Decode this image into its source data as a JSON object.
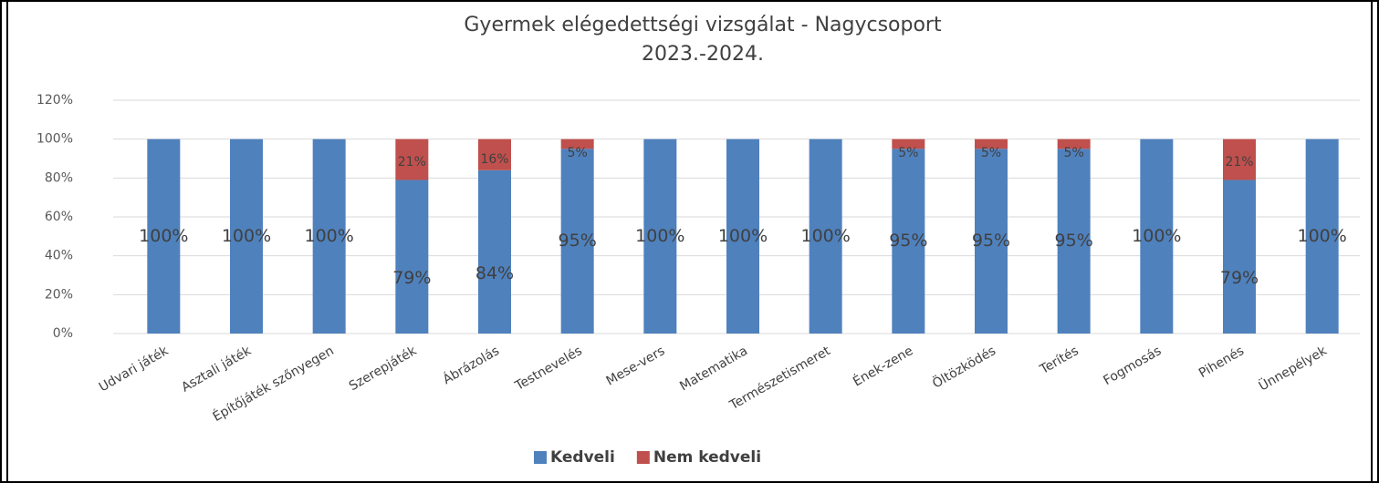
{
  "chart_data": {
    "type": "bar",
    "stacked": true,
    "title": "Gyermek elégedettségi vizsgálat - Nagycsoport",
    "subtitle": "2023.-2024.",
    "categories": [
      "Udvari játék",
      "Asztali játék",
      "Építőjáték szőnyegen",
      "Szerepjáték",
      "Ábrázolás",
      "Testnevelés",
      "Mese-vers",
      "Matematika",
      "Természetismeret",
      "Ének-zene",
      "Öltözködés",
      "Terítés",
      "Fogmosás",
      "Pihenés",
      "Ünnepélyek"
    ],
    "series": [
      {
        "name": "Kedveli",
        "color": "#4f81bd",
        "values": [
          100,
          100,
          100,
          79,
          84,
          95,
          100,
          100,
          100,
          95,
          95,
          95,
          100,
          79,
          100
        ],
        "value_labels": [
          "100%",
          "100%",
          "100%",
          "79%",
          "84%",
          "95%",
          "100%",
          "100%",
          "100%",
          "95%",
          "95%",
          "95%",
          "100%",
          "79%",
          "100%"
        ]
      },
      {
        "name": "Nem kedveli",
        "color": "#c0504d",
        "values": [
          0,
          0,
          0,
          21,
          16,
          5,
          0,
          0,
          0,
          5,
          5,
          5,
          0,
          21,
          0
        ],
        "value_labels": [
          null,
          null,
          null,
          "21%",
          "16%",
          "5%",
          null,
          null,
          null,
          "5%",
          "5%",
          "5%",
          null,
          "21%",
          null
        ]
      }
    ],
    "ylim": [
      0,
      120
    ],
    "yticks": [
      {
        "value": 0,
        "label": "0%"
      },
      {
        "value": 20,
        "label": "20%"
      },
      {
        "value": 40,
        "label": "40%"
      },
      {
        "value": 60,
        "label": "60%"
      },
      {
        "value": 80,
        "label": "80%"
      },
      {
        "value": 100,
        "label": "100%"
      },
      {
        "value": 120,
        "label": "120%"
      }
    ],
    "grid": true,
    "legend": "bottom"
  }
}
